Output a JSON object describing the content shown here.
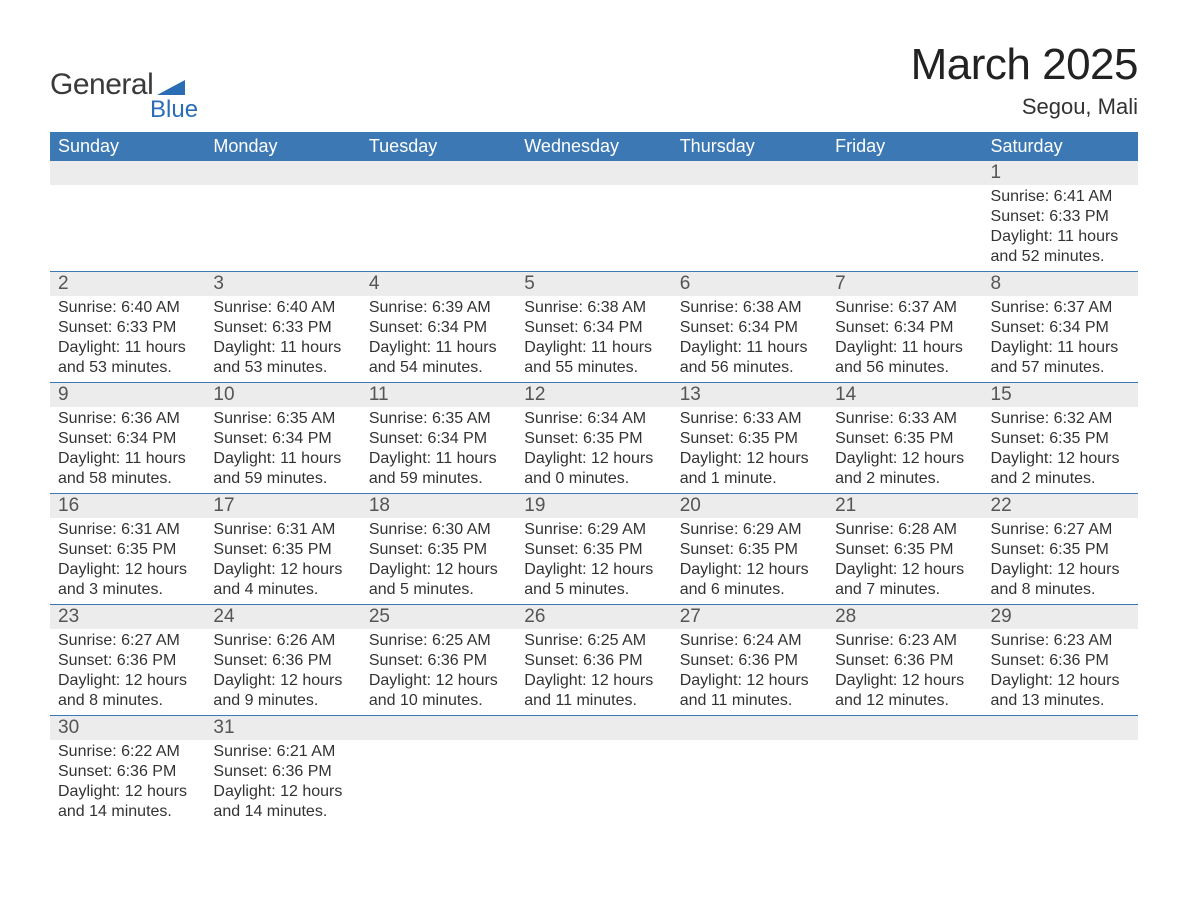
{
  "logo": {
    "word1": "General",
    "word2": "Blue",
    "shape_color": "#2a6db5"
  },
  "title": "March 2025",
  "location": "Segou, Mali",
  "colors": {
    "header_bg": "#3c78b4",
    "header_text": "#ffffff",
    "daynum_bg": "#ececec",
    "border": "#3c78b4",
    "text": "#333333"
  },
  "weekdays": [
    "Sunday",
    "Monday",
    "Tuesday",
    "Wednesday",
    "Thursday",
    "Friday",
    "Saturday"
  ],
  "weeks": [
    [
      null,
      null,
      null,
      null,
      null,
      null,
      {
        "d": "1",
        "sr": "6:41 AM",
        "ss": "6:33 PM",
        "dl": "11 hours and 52 minutes."
      }
    ],
    [
      {
        "d": "2",
        "sr": "6:40 AM",
        "ss": "6:33 PM",
        "dl": "11 hours and 53 minutes."
      },
      {
        "d": "3",
        "sr": "6:40 AM",
        "ss": "6:33 PM",
        "dl": "11 hours and 53 minutes."
      },
      {
        "d": "4",
        "sr": "6:39 AM",
        "ss": "6:34 PM",
        "dl": "11 hours and 54 minutes."
      },
      {
        "d": "5",
        "sr": "6:38 AM",
        "ss": "6:34 PM",
        "dl": "11 hours and 55 minutes."
      },
      {
        "d": "6",
        "sr": "6:38 AM",
        "ss": "6:34 PM",
        "dl": "11 hours and 56 minutes."
      },
      {
        "d": "7",
        "sr": "6:37 AM",
        "ss": "6:34 PM",
        "dl": "11 hours and 56 minutes."
      },
      {
        "d": "8",
        "sr": "6:37 AM",
        "ss": "6:34 PM",
        "dl": "11 hours and 57 minutes."
      }
    ],
    [
      {
        "d": "9",
        "sr": "6:36 AM",
        "ss": "6:34 PM",
        "dl": "11 hours and 58 minutes."
      },
      {
        "d": "10",
        "sr": "6:35 AM",
        "ss": "6:34 PM",
        "dl": "11 hours and 59 minutes."
      },
      {
        "d": "11",
        "sr": "6:35 AM",
        "ss": "6:34 PM",
        "dl": "11 hours and 59 minutes."
      },
      {
        "d": "12",
        "sr": "6:34 AM",
        "ss": "6:35 PM",
        "dl": "12 hours and 0 minutes."
      },
      {
        "d": "13",
        "sr": "6:33 AM",
        "ss": "6:35 PM",
        "dl": "12 hours and 1 minute."
      },
      {
        "d": "14",
        "sr": "6:33 AM",
        "ss": "6:35 PM",
        "dl": "12 hours and 2 minutes."
      },
      {
        "d": "15",
        "sr": "6:32 AM",
        "ss": "6:35 PM",
        "dl": "12 hours and 2 minutes."
      }
    ],
    [
      {
        "d": "16",
        "sr": "6:31 AM",
        "ss": "6:35 PM",
        "dl": "12 hours and 3 minutes."
      },
      {
        "d": "17",
        "sr": "6:31 AM",
        "ss": "6:35 PM",
        "dl": "12 hours and 4 minutes."
      },
      {
        "d": "18",
        "sr": "6:30 AM",
        "ss": "6:35 PM",
        "dl": "12 hours and 5 minutes."
      },
      {
        "d": "19",
        "sr": "6:29 AM",
        "ss": "6:35 PM",
        "dl": "12 hours and 5 minutes."
      },
      {
        "d": "20",
        "sr": "6:29 AM",
        "ss": "6:35 PM",
        "dl": "12 hours and 6 minutes."
      },
      {
        "d": "21",
        "sr": "6:28 AM",
        "ss": "6:35 PM",
        "dl": "12 hours and 7 minutes."
      },
      {
        "d": "22",
        "sr": "6:27 AM",
        "ss": "6:35 PM",
        "dl": "12 hours and 8 minutes."
      }
    ],
    [
      {
        "d": "23",
        "sr": "6:27 AM",
        "ss": "6:36 PM",
        "dl": "12 hours and 8 minutes."
      },
      {
        "d": "24",
        "sr": "6:26 AM",
        "ss": "6:36 PM",
        "dl": "12 hours and 9 minutes."
      },
      {
        "d": "25",
        "sr": "6:25 AM",
        "ss": "6:36 PM",
        "dl": "12 hours and 10 minutes."
      },
      {
        "d": "26",
        "sr": "6:25 AM",
        "ss": "6:36 PM",
        "dl": "12 hours and 11 minutes."
      },
      {
        "d": "27",
        "sr": "6:24 AM",
        "ss": "6:36 PM",
        "dl": "12 hours and 11 minutes."
      },
      {
        "d": "28",
        "sr": "6:23 AM",
        "ss": "6:36 PM",
        "dl": "12 hours and 12 minutes."
      },
      {
        "d": "29",
        "sr": "6:23 AM",
        "ss": "6:36 PM",
        "dl": "12 hours and 13 minutes."
      }
    ],
    [
      {
        "d": "30",
        "sr": "6:22 AM",
        "ss": "6:36 PM",
        "dl": "12 hours and 14 minutes."
      },
      {
        "d": "31",
        "sr": "6:21 AM",
        "ss": "6:36 PM",
        "dl": "12 hours and 14 minutes."
      },
      null,
      null,
      null,
      null,
      null
    ]
  ],
  "labels": {
    "sunrise": "Sunrise: ",
    "sunset": "Sunset: ",
    "daylight": "Daylight: "
  }
}
